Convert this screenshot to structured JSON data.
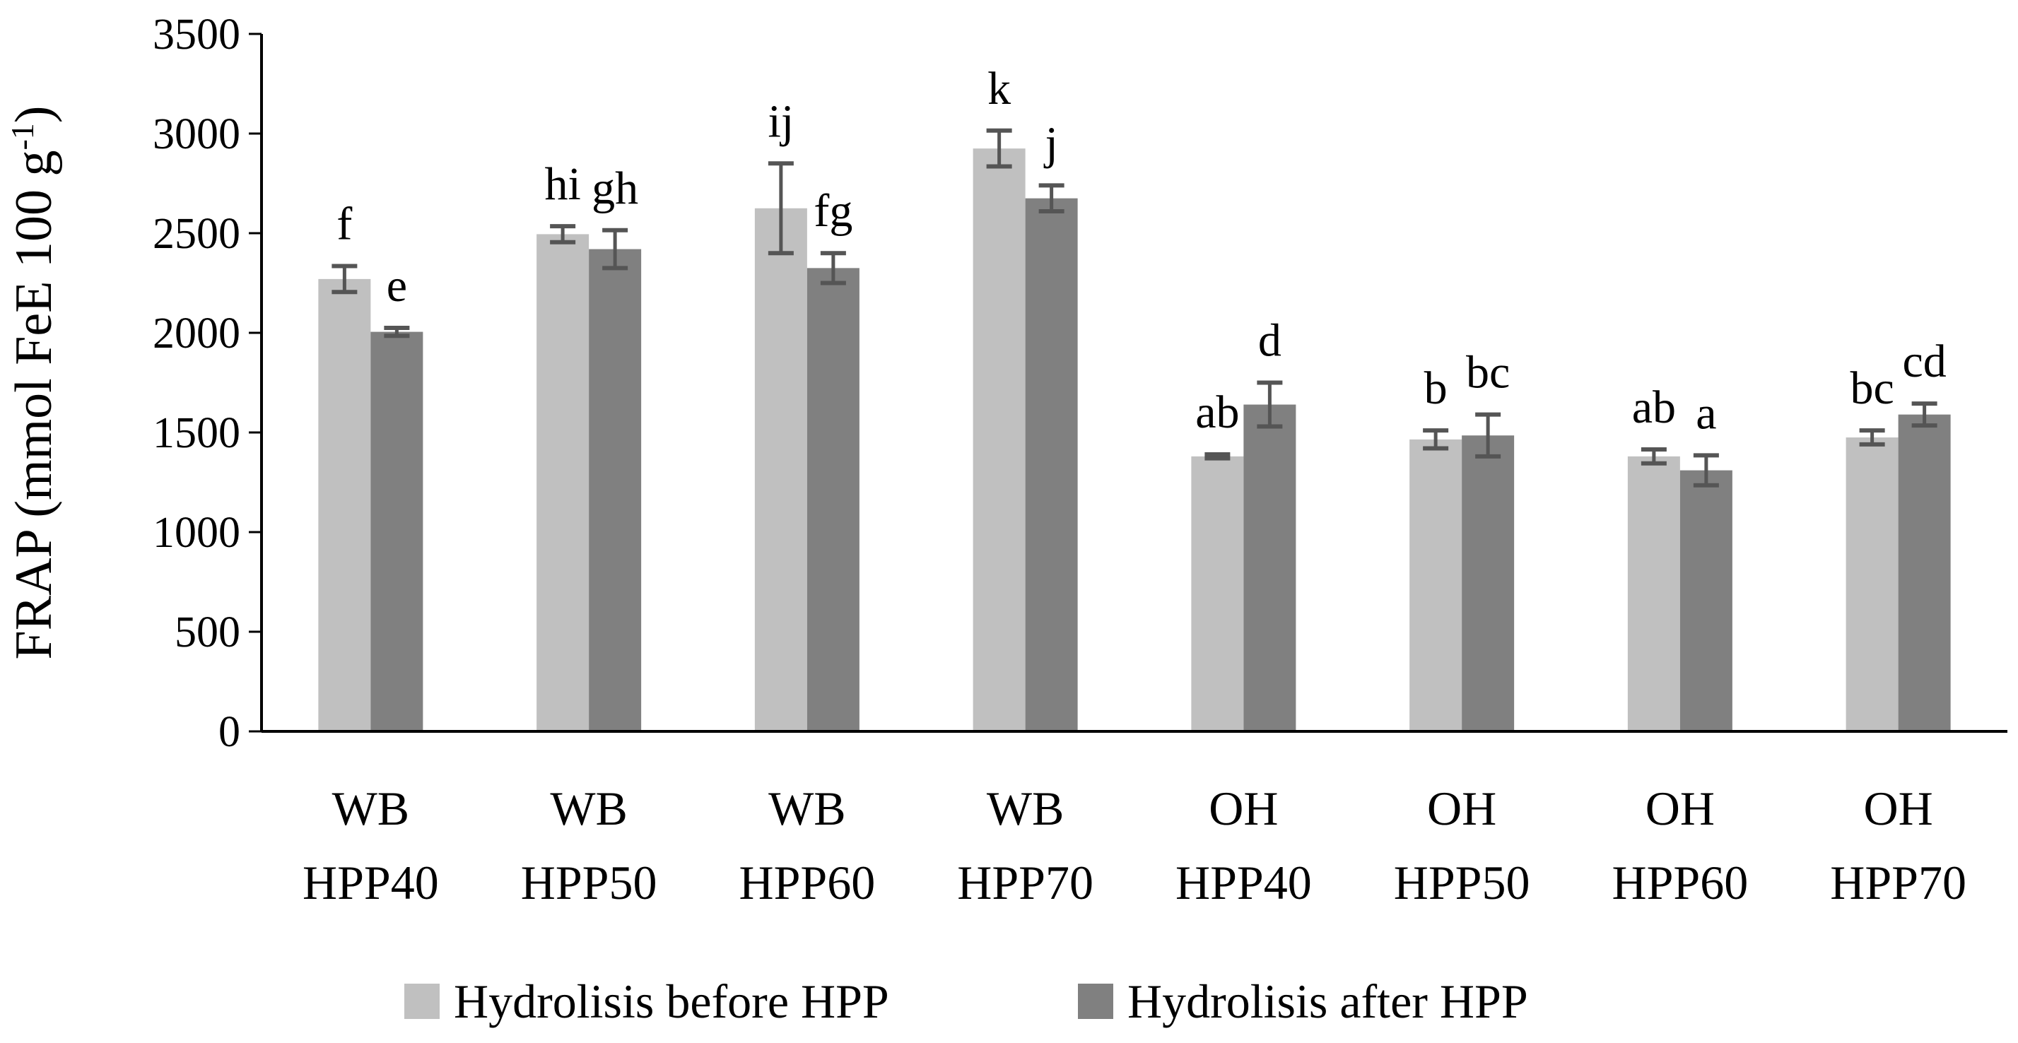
{
  "chart_data": {
    "type": "bar",
    "ylabel": "FRAP (mmol FeE 100 g",
    "ylabel_sup": "-1",
    "ylabel_end": ")",
    "ylim": [
      0,
      3500
    ],
    "yticks": [
      "0",
      "500",
      "1000",
      "1500",
      "2000",
      "2500",
      "3000",
      "3500"
    ],
    "categories": [
      [
        "WB",
        "HPP40"
      ],
      [
        "WB",
        "HPP50"
      ],
      [
        "WB",
        "HPP60"
      ],
      [
        "WB",
        "HPP70"
      ],
      [
        "OH",
        "HPP40"
      ],
      [
        "OH",
        "HPP50"
      ],
      [
        "OH",
        "HPP60"
      ],
      [
        "OH",
        "HPP70"
      ]
    ],
    "series": [
      {
        "name": "Hydrolisis before HPP",
        "color": "#c0c0c0",
        "values": [
          2270,
          2495,
          2625,
          2925,
          1380,
          1465,
          1380,
          1475
        ],
        "errors": [
          65,
          40,
          225,
          90,
          10,
          45,
          35,
          35
        ],
        "letters": [
          "f",
          "hi",
          "ij",
          "k",
          "ab",
          "b",
          "ab",
          "bc"
        ]
      },
      {
        "name": "Hydrolisis after HPP",
        "color": "#808080",
        "values": [
          2005,
          2420,
          2325,
          2675,
          1640,
          1485,
          1310,
          1590
        ],
        "errors": [
          20,
          95,
          75,
          65,
          110,
          105,
          75,
          55
        ],
        "letters": [
          "e",
          "gh",
          "fg",
          "j",
          "d",
          "bc",
          "a",
          "cd"
        ]
      }
    ],
    "grid": false,
    "legend_position": "bottom"
  }
}
